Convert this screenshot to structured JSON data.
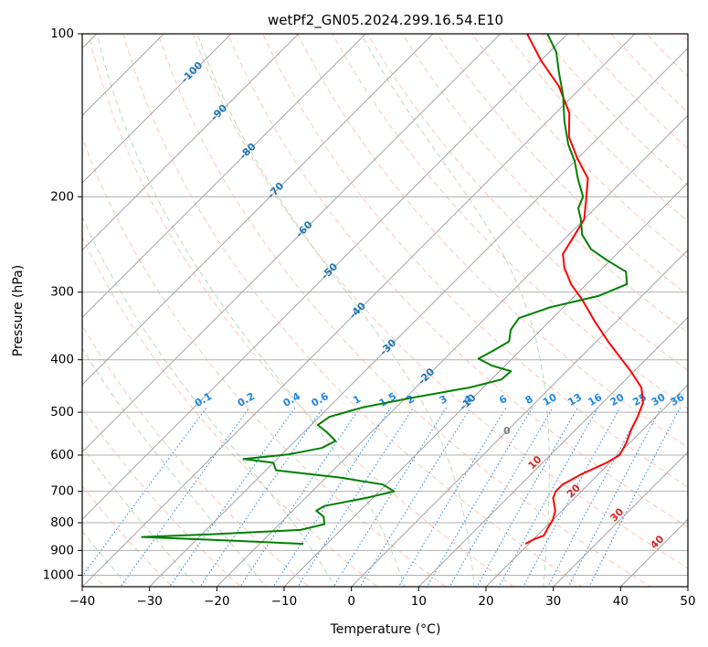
{
  "chart_data": {
    "type": "skew-t",
    "title": "wetPf2_GN05.2024.299.16.54.E10",
    "xlabel": "Temperature (°C)",
    "ylabel": "Pressure (hPa)",
    "xlim": [
      -40,
      50
    ],
    "ylim": [
      1050,
      100
    ],
    "x_ticks": [
      -40,
      -30,
      -20,
      -10,
      0,
      10,
      20,
      30,
      40,
      50
    ],
    "x_tick_labels": [
      "−40",
      "−30",
      "−20",
      "−10",
      "0",
      "10",
      "20",
      "30",
      "40",
      "50"
    ],
    "y_ticks": [
      100,
      200,
      300,
      400,
      500,
      600,
      700,
      800,
      900,
      1000
    ],
    "y_scale": "log",
    "grid": true,
    "colors": {
      "temperature": "#ff0000",
      "dewpoint": "#008000",
      "isotherm_labels": "#1f77b4",
      "mixing_ratio": "#1e88e5",
      "dry_adiabat": "#ff7f50",
      "moist_adiabat": "#2ca02c",
      "dry_adiabat_labels": "#d62728",
      "zero_label": "#7f7f7f"
    },
    "isotherm_labels": [
      "-100",
      "-90",
      "-80",
      "-70",
      "-60",
      "-50",
      "-40",
      "-30",
      "-20",
      "-10",
      "0",
      "10",
      "20",
      "30",
      "40"
    ],
    "isotherm_label_values": [
      -100,
      -90,
      -80,
      -70,
      -60,
      -50,
      -40,
      -30,
      -20,
      -10,
      0,
      10,
      20,
      30,
      40
    ],
    "mixing_ratio_labels": [
      "0.1",
      "0.2",
      "0.4",
      "0.6",
      "1",
      "1.5",
      "2",
      "3",
      "4",
      "6",
      "8",
      "10",
      "13",
      "16",
      "20",
      "25",
      "30",
      "36"
    ],
    "mixing_ratio_values": [
      0.1,
      0.2,
      0.4,
      0.6,
      1,
      1.5,
      2,
      3,
      4,
      6,
      8,
      10,
      13,
      16,
      20,
      25,
      30,
      36
    ],
    "series": [
      {
        "name": "Temperature",
        "points": [
          {
            "p": 875,
            "t": 19.5
          },
          {
            "p": 860,
            "t": 20.0
          },
          {
            "p": 845,
            "t": 21.0
          },
          {
            "p": 820,
            "t": 20.5
          },
          {
            "p": 790,
            "t": 20.0
          },
          {
            "p": 760,
            "t": 19.0
          },
          {
            "p": 720,
            "t": 16.8
          },
          {
            "p": 700,
            "t": 16.2
          },
          {
            "p": 680,
            "t": 16.2
          },
          {
            "p": 650,
            "t": 17.5
          },
          {
            "p": 620,
            "t": 19.5
          },
          {
            "p": 600,
            "t": 20.3
          },
          {
            "p": 570,
            "t": 19.5
          },
          {
            "p": 540,
            "t": 18.3
          },
          {
            "p": 510,
            "t": 17.3
          },
          {
            "p": 480,
            "t": 16.0
          },
          {
            "p": 450,
            "t": 13.5
          },
          {
            "p": 420,
            "t": 9.5
          },
          {
            "p": 400,
            "t": 6.5
          },
          {
            "p": 370,
            "t": 1.7
          },
          {
            "p": 340,
            "t": -3.2
          },
          {
            "p": 310,
            "t": -8.3
          },
          {
            "p": 290,
            "t": -12.3
          },
          {
            "p": 270,
            "t": -15.8
          },
          {
            "p": 255,
            "t": -18.0
          },
          {
            "p": 240,
            "t": -18.8
          },
          {
            "p": 220,
            "t": -20.0
          },
          {
            "p": 200,
            "t": -23.0
          },
          {
            "p": 185,
            "t": -25.5
          },
          {
            "p": 170,
            "t": -30.0
          },
          {
            "p": 155,
            "t": -34.5
          },
          {
            "p": 140,
            "t": -38.0
          },
          {
            "p": 125,
            "t": -43.5
          },
          {
            "p": 112,
            "t": -50.0
          },
          {
            "p": 100,
            "t": -56.0
          }
        ]
      },
      {
        "name": "Dewpoint",
        "points": [
          {
            "p": 875,
            "t": -13.5
          },
          {
            "p": 860,
            "t": -28.0
          },
          {
            "p": 850,
            "t": -38.5
          },
          {
            "p": 840,
            "t": -28.5
          },
          {
            "p": 825,
            "t": -16.0
          },
          {
            "p": 805,
            "t": -13.3
          },
          {
            "p": 780,
            "t": -14.5
          },
          {
            "p": 760,
            "t": -16.5
          },
          {
            "p": 745,
            "t": -16.0
          },
          {
            "p": 720,
            "t": -11.0
          },
          {
            "p": 700,
            "t": -7.8
          },
          {
            "p": 680,
            "t": -10.5
          },
          {
            "p": 660,
            "t": -18.0
          },
          {
            "p": 640,
            "t": -28.5
          },
          {
            "p": 620,
            "t": -30.0
          },
          {
            "p": 610,
            "t": -35.0
          },
          {
            "p": 598,
            "t": -29.0
          },
          {
            "p": 582,
            "t": -25.0
          },
          {
            "p": 565,
            "t": -24.0
          },
          {
            "p": 545,
            "t": -26.5
          },
          {
            "p": 528,
            "t": -29.0
          },
          {
            "p": 510,
            "t": -28.5
          },
          {
            "p": 490,
            "t": -25.0
          },
          {
            "p": 470,
            "t": -19.0
          },
          {
            "p": 450,
            "t": -12.0
          },
          {
            "p": 435,
            "t": -8.5
          },
          {
            "p": 420,
            "t": -8.3
          },
          {
            "p": 410,
            "t": -12.0
          },
          {
            "p": 398,
            "t": -15.0
          },
          {
            "p": 385,
            "t": -14.0
          },
          {
            "p": 370,
            "t": -13.0
          },
          {
            "p": 352,
            "t": -14.5
          },
          {
            "p": 335,
            "t": -15.0
          },
          {
            "p": 320,
            "t": -12.0
          },
          {
            "p": 305,
            "t": -6.5
          },
          {
            "p": 290,
            "t": -4.0
          },
          {
            "p": 275,
            "t": -6.0
          },
          {
            "p": 262,
            "t": -10.5
          },
          {
            "p": 250,
            "t": -14.5
          },
          {
            "p": 235,
            "t": -18.0
          },
          {
            "p": 220,
            "t": -20.5
          },
          {
            "p": 210,
            "t": -22.5
          },
          {
            "p": 200,
            "t": -23.5
          },
          {
            "p": 185,
            "t": -27.0
          },
          {
            "p": 172,
            "t": -30.0
          },
          {
            "p": 160,
            "t": -33.5
          },
          {
            "p": 145,
            "t": -37.5
          },
          {
            "p": 130,
            "t": -41.5
          },
          {
            "p": 118,
            "t": -45.5
          },
          {
            "p": 108,
            "t": -49.0
          },
          {
            "p": 100,
            "t": -53.0
          }
        ]
      }
    ]
  }
}
